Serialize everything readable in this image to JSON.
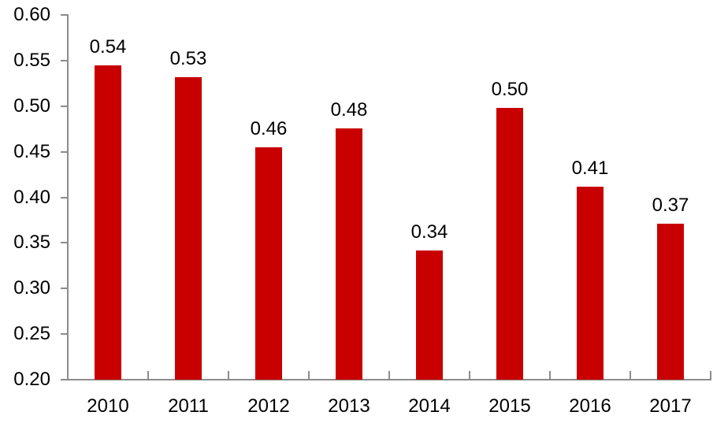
{
  "chart_data": {
    "type": "bar",
    "title": "",
    "xlabel": "",
    "ylabel": "",
    "categories": [
      "2010",
      "2011",
      "2012",
      "2013",
      "2014",
      "2015",
      "2016",
      "2017"
    ],
    "values": [
      0.545,
      0.532,
      0.455,
      0.476,
      0.342,
      0.498,
      0.412,
      0.371
    ],
    "data_labels": [
      "0.54",
      "0.53",
      "0.46",
      "0.48",
      "0.34",
      "0.50",
      "0.41",
      "0.37"
    ],
    "ylim": [
      0.2,
      0.6
    ],
    "ytick_step": 0.05,
    "ytick_labels": [
      "0.60",
      "0.55",
      "0.50",
      "0.45",
      "0.40",
      "0.35",
      "0.30",
      "0.25",
      "0.20"
    ],
    "ytick_values": [
      0.6,
      0.55,
      0.5,
      0.45,
      0.4,
      0.35,
      0.3,
      0.25,
      0.2
    ],
    "grid": false,
    "legend": false,
    "legend_position": "none",
    "colors": {
      "bar": "#C80000",
      "axis": "#8C8C8C",
      "text": "#000000",
      "background": "#FFFFFF"
    }
  }
}
